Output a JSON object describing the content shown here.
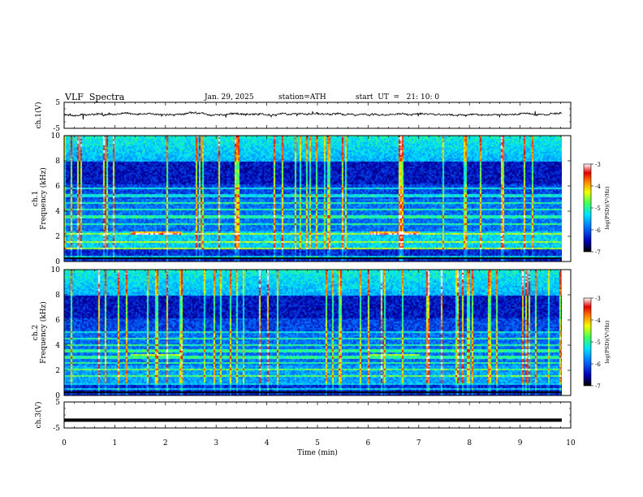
{
  "header": {
    "title": "VLF  Spectra",
    "date": "Jan. 29, 2025",
    "station": "station=ATH",
    "start": "start  UT  =   21: 10: 0"
  },
  "chart_data": [
    {
      "type": "line",
      "panel": "ch1-waveform",
      "ylabel": "ch.1(V)",
      "ylim": [
        -5,
        5
      ],
      "yticks": [
        "5",
        "-5"
      ],
      "xlim": [
        0,
        10
      ],
      "series": [
        {
          "values_description": "",
          "mean": 0.4,
          "amplitude": 1.2
        }
      ]
    },
    {
      "type": "heatmap",
      "panel": "ch1-spectrogram",
      "ylabel": "ch.1\nFrequency (kHz)",
      "ylabel_lines": [
        "ch.1",
        "Frequency (kHz)"
      ],
      "ylim": [
        0,
        10
      ],
      "yticks": [
        "0",
        "2",
        "4",
        "6",
        "8",
        "10"
      ],
      "xlim": [
        0,
        9.8
      ],
      "colorbar": {
        "label": "log(PSD)(V²/Hz)",
        "ticks": [
          "-3",
          "-4",
          "-5",
          "-6",
          "-7"
        ],
        "range": [
          -7,
          -3
        ]
      },
      "bands_khz": [
        0.5,
        1.1,
        1.6,
        2.3,
        3.0,
        3.6,
        4.2,
        4.7,
        5.3,
        5.9
      ],
      "bright_segments": [
        {
          "start_min": 1.3,
          "end_min": 2.3,
          "freq_khz": 2.3
        },
        {
          "start_min": 6.0,
          "end_min": 7.0,
          "freq_khz": 2.3
        }
      ]
    },
    {
      "type": "heatmap",
      "panel": "ch2-spectrogram",
      "ylabel_lines": [
        "ch.2",
        "Frequency (kHz)"
      ],
      "ylim": [
        0,
        10
      ],
      "yticks": [
        "0",
        "2",
        "4",
        "6",
        "8",
        "10"
      ],
      "xlim": [
        0,
        9.8
      ],
      "colorbar": {
        "label": "log(PSD)(V²/Hz)",
        "ticks": [
          "-3",
          "-4",
          "-5",
          "-6",
          "-7"
        ],
        "range": [
          -7,
          -3
        ]
      },
      "bands_khz": [
        0.6,
        1.0,
        1.6,
        2.1,
        2.6,
        3.1,
        3.6,
        4.1,
        4.6,
        5.1
      ],
      "bright_segments": [
        {
          "start_min": 1.3,
          "end_min": 2.3,
          "freq_khz": 3.3
        },
        {
          "start_min": 6.0,
          "end_min": 7.0,
          "freq_khz": 3.3
        }
      ]
    },
    {
      "type": "line",
      "panel": "ch3-waveform",
      "ylabel": "ch.3(V)",
      "ylim": [
        -5,
        5
      ],
      "yticks": [
        "5",
        "-5"
      ],
      "xlim": [
        0,
        10
      ],
      "series": [
        {
          "constant": -2
        }
      ]
    }
  ],
  "xaxis": {
    "label": "Time  (min)",
    "ticks": [
      "0",
      "1",
      "2",
      "3",
      "4",
      "5",
      "6",
      "7",
      "8",
      "9",
      "10"
    ]
  }
}
